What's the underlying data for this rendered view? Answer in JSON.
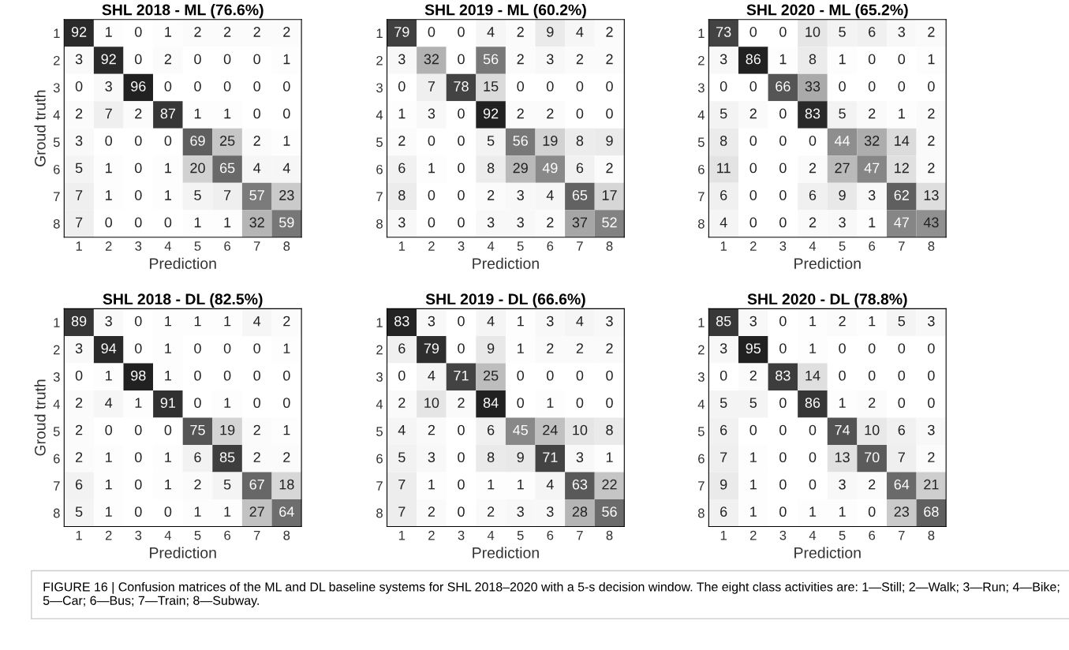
{
  "chart_data": [
    {
      "type": "heatmap",
      "title": "SHL 2018 - ML (76.6%)",
      "xlabel": "Prediction",
      "ylabel": "Groud truth",
      "categories": [
        "1",
        "2",
        "3",
        "4",
        "5",
        "6",
        "7",
        "8"
      ],
      "y_categories": [
        "1",
        "2",
        "3",
        "4",
        "5",
        "6",
        "7",
        "8"
      ],
      "data_labels": true,
      "cells": [
        [
          92,
          1,
          0,
          1,
          2,
          2,
          2,
          2
        ],
        [
          3,
          92,
          0,
          2,
          0,
          0,
          0,
          1
        ],
        [
          0,
          3,
          96,
          0,
          0,
          0,
          0,
          0
        ],
        [
          2,
          7,
          2,
          87,
          1,
          1,
          0,
          0
        ],
        [
          3,
          0,
          0,
          0,
          69,
          25,
          2,
          1
        ],
        [
          5,
          1,
          0,
          1,
          20,
          65,
          4,
          4
        ],
        [
          7,
          1,
          0,
          1,
          5,
          7,
          57,
          23
        ],
        [
          7,
          0,
          0,
          0,
          1,
          1,
          32,
          59
        ]
      ]
    },
    {
      "type": "heatmap",
      "title": "SHL 2019 - ML (60.2%)",
      "xlabel": "Prediction",
      "categories": [
        "1",
        "2",
        "3",
        "4",
        "5",
        "6",
        "7",
        "8"
      ],
      "y_categories": [
        "1",
        "2",
        "3",
        "4",
        "5",
        "6",
        "7",
        "8"
      ],
      "data_labels": true,
      "cells": [
        [
          79,
          0,
          0,
          4,
          2,
          9,
          4,
          2
        ],
        [
          3,
          32,
          0,
          56,
          2,
          3,
          2,
          2
        ],
        [
          0,
          7,
          78,
          15,
          0,
          0,
          0,
          0
        ],
        [
          1,
          3,
          0,
          92,
          2,
          2,
          0,
          0
        ],
        [
          2,
          0,
          0,
          5,
          56,
          19,
          8,
          9
        ],
        [
          6,
          1,
          0,
          8,
          29,
          49,
          6,
          2
        ],
        [
          8,
          0,
          0,
          2,
          3,
          4,
          65,
          17
        ],
        [
          3,
          0,
          0,
          3,
          3,
          2,
          37,
          52
        ]
      ]
    },
    {
      "type": "heatmap",
      "title": "SHL 2020 - ML (65.2%)",
      "xlabel": "Prediction",
      "categories": [
        "1",
        "2",
        "3",
        "4",
        "5",
        "6",
        "7",
        "8"
      ],
      "y_categories": [
        "1",
        "2",
        "3",
        "4",
        "5",
        "6",
        "7",
        "8"
      ],
      "data_labels": true,
      "cells": [
        [
          73,
          0,
          0,
          10,
          5,
          6,
          3,
          2
        ],
        [
          3,
          86,
          1,
          8,
          1,
          0,
          0,
          1
        ],
        [
          0,
          0,
          66,
          33,
          0,
          0,
          0,
          0
        ],
        [
          5,
          2,
          0,
          83,
          5,
          2,
          1,
          2
        ],
        [
          8,
          0,
          0,
          0,
          44,
          32,
          14,
          2
        ],
        [
          11,
          0,
          0,
          2,
          27,
          47,
          12,
          2
        ],
        [
          6,
          0,
          0,
          6,
          9,
          3,
          62,
          13
        ],
        [
          4,
          0,
          0,
          2,
          3,
          1,
          47,
          43
        ]
      ]
    },
    {
      "type": "heatmap",
      "title": "SHL 2018 - DL (82.5%)",
      "xlabel": "Prediction",
      "ylabel": "Groud truth",
      "categories": [
        "1",
        "2",
        "3",
        "4",
        "5",
        "6",
        "7",
        "8"
      ],
      "y_categories": [
        "1",
        "2",
        "3",
        "4",
        "5",
        "6",
        "7",
        "8"
      ],
      "data_labels": true,
      "cells": [
        [
          89,
          3,
          0,
          1,
          1,
          1,
          4,
          2
        ],
        [
          3,
          94,
          0,
          1,
          0,
          0,
          0,
          1
        ],
        [
          0,
          1,
          98,
          1,
          0,
          0,
          0,
          0
        ],
        [
          2,
          4,
          1,
          91,
          0,
          1,
          0,
          0
        ],
        [
          2,
          0,
          0,
          0,
          75,
          19,
          2,
          1
        ],
        [
          2,
          1,
          0,
          1,
          6,
          85,
          2,
          2
        ],
        [
          6,
          1,
          0,
          1,
          2,
          5,
          67,
          18
        ],
        [
          5,
          1,
          0,
          0,
          1,
          1,
          27,
          64
        ]
      ]
    },
    {
      "type": "heatmap",
      "title": "SHL 2019 - DL (66.6%)",
      "xlabel": "Prediction",
      "categories": [
        "1",
        "2",
        "3",
        "4",
        "5",
        "6",
        "7",
        "8"
      ],
      "y_categories": [
        "1",
        "2",
        "3",
        "4",
        "5",
        "6",
        "7",
        "8"
      ],
      "data_labels": true,
      "cells": [
        [
          83,
          3,
          0,
          4,
          1,
          3,
          4,
          3
        ],
        [
          6,
          79,
          0,
          9,
          1,
          2,
          2,
          2
        ],
        [
          0,
          4,
          71,
          25,
          0,
          0,
          0,
          0
        ],
        [
          2,
          10,
          2,
          84,
          0,
          1,
          0,
          0
        ],
        [
          4,
          2,
          0,
          6,
          45,
          24,
          10,
          8
        ],
        [
          5,
          3,
          0,
          8,
          9,
          71,
          3,
          1
        ],
        [
          7,
          1,
          0,
          1,
          1,
          4,
          63,
          22
        ],
        [
          7,
          2,
          0,
          2,
          3,
          3,
          28,
          56
        ]
      ]
    },
    {
      "type": "heatmap",
      "title": "SHL 2020 - DL (78.8%)",
      "xlabel": "Prediction",
      "categories": [
        "1",
        "2",
        "3",
        "4",
        "5",
        "6",
        "7",
        "8"
      ],
      "y_categories": [
        "1",
        "2",
        "3",
        "4",
        "5",
        "6",
        "7",
        "8"
      ],
      "data_labels": true,
      "cells": [
        [
          85,
          3,
          0,
          1,
          2,
          1,
          5,
          3
        ],
        [
          3,
          95,
          0,
          1,
          0,
          0,
          0,
          0
        ],
        [
          0,
          2,
          83,
          14,
          0,
          0,
          0,
          0
        ],
        [
          5,
          5,
          0,
          86,
          1,
          2,
          0,
          0
        ],
        [
          6,
          0,
          0,
          0,
          74,
          10,
          6,
          3
        ],
        [
          7,
          1,
          0,
          0,
          13,
          70,
          7,
          2
        ],
        [
          9,
          1,
          0,
          0,
          3,
          2,
          64,
          21
        ],
        [
          6,
          1,
          0,
          1,
          1,
          0,
          23,
          68
        ]
      ],
      "annotations": [
        "FIGURE 16 | Confusion matrices of the ML and DL baseline systems for SHL 2018–2020 with a 5-s decision window. The eight class activities are: 1—Still; 2—Walk; 3—Run; 4—Bike; 5—Car; 6—Bus; 7—Train; 8—Subway."
      ]
    }
  ]
}
